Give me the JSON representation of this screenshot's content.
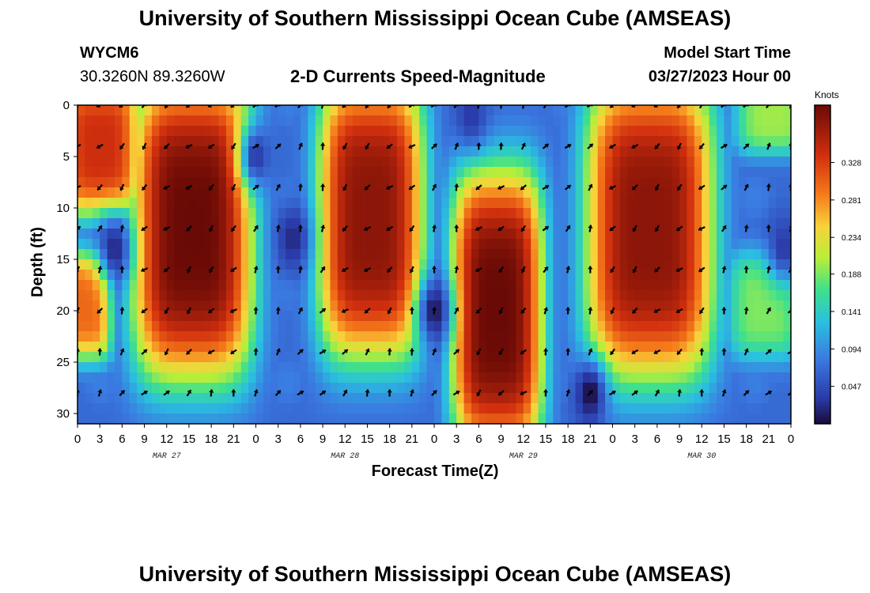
{
  "page": {
    "title": "University of Southern Mississippi Ocean Cube (AMSEAS)",
    "footer_title": "University of Southern Mississippi Ocean Cube (AMSEAS)",
    "station_id": "WYCM6",
    "station_coords": "30.3260N  89.3260W",
    "subtitle": "2-D Currents Speed-Magnitude",
    "model_start_label": "Model Start Time",
    "model_start_value": "03/27/2023 Hour 00"
  },
  "chart_data": {
    "type": "heatmap",
    "title": "2-D Currents Speed-Magnitude",
    "xlabel": "Forecast Time(Z)",
    "ylabel": "Depth (ft)",
    "x_range_hours": [
      0,
      96
    ],
    "y_range_ft": [
      0,
      31
    ],
    "y_inverted": true,
    "x_tick_labels": [
      "0",
      "3",
      "6",
      "9",
      "12",
      "15",
      "18",
      "21",
      "0",
      "3",
      "6",
      "9",
      "12",
      "15",
      "18",
      "21",
      "0",
      "3",
      "6",
      "9",
      "12",
      "15",
      "18",
      "21",
      "0",
      "3",
      "6",
      "9",
      "12",
      "15",
      "18",
      "21",
      "0"
    ],
    "x_tick_hours": [
      0,
      3,
      6,
      9,
      12,
      15,
      18,
      21,
      24,
      27,
      30,
      33,
      36,
      39,
      42,
      45,
      48,
      51,
      54,
      57,
      60,
      63,
      66,
      69,
      72,
      75,
      78,
      81,
      84,
      87,
      90,
      93,
      96
    ],
    "date_labels": [
      {
        "text": "MAR 27",
        "hour": 12
      },
      {
        "text": "MAR 28",
        "hour": 36
      },
      {
        "text": "MAR 29",
        "hour": 60
      },
      {
        "text": "MAR 30",
        "hour": 84
      }
    ],
    "y_ticks": [
      0,
      5,
      10,
      15,
      20,
      25,
      30
    ],
    "y_tick_labels": [
      "0",
      "5",
      "10",
      "15",
      "20",
      "25",
      "30"
    ],
    "colorbar": {
      "units": "Knots",
      "min": 0.0,
      "max": 0.4,
      "tick_labels": [
        "0.328",
        "0.281",
        "0.234",
        "0.188",
        "0.141",
        "0.094",
        "0.047"
      ],
      "tick_values": [
        0.328,
        0.281,
        0.234,
        0.188,
        0.141,
        0.094,
        0.047
      ]
    },
    "speed_bands_knots": [
      {
        "t_start": 0,
        "t_end": 6,
        "depth_start": 0,
        "depth_end": 8,
        "speed": 0.34
      },
      {
        "t_start": 0,
        "t_end": 2,
        "depth_start": 17,
        "depth_end": 22,
        "speed": 0.3
      },
      {
        "t_start": 10,
        "t_end": 21,
        "depth_start": 0,
        "depth_end": 24,
        "speed": 0.4
      },
      {
        "t_start": 35,
        "t_end": 44,
        "depth_start": 0,
        "depth_end": 22,
        "speed": 0.38
      },
      {
        "t_start": 53,
        "t_end": 60,
        "depth_start": 9,
        "depth_end": 31,
        "speed": 0.4
      },
      {
        "t_start": 71,
        "t_end": 83,
        "depth_start": 0,
        "depth_end": 24,
        "speed": 0.38
      },
      {
        "t_start": 90,
        "t_end": 95,
        "depth_start": 17,
        "depth_end": 22,
        "speed": 0.19
      },
      {
        "t_start": 91,
        "t_end": 96,
        "depth_start": 0,
        "depth_end": 2,
        "speed": 0.2
      }
    ],
    "low_spots_knots": [
      {
        "t": 5,
        "depth": 14,
        "speed": 0.02
      },
      {
        "t": 24,
        "depth": 5,
        "speed": 0.03
      },
      {
        "t": 29,
        "depth": 13,
        "speed": 0.02
      },
      {
        "t": 48,
        "depth": 20,
        "speed": 0.01
      },
      {
        "t": 69,
        "depth": 28,
        "speed": 0.0
      },
      {
        "t": 53,
        "depth": 1,
        "speed": 0.03
      },
      {
        "t": 95,
        "depth": 14,
        "speed": 0.03
      }
    ],
    "vector_grid": {
      "times_hours": [
        0,
        3,
        6,
        9,
        12,
        15,
        18,
        21,
        24,
        27,
        30,
        33,
        36,
        39,
        42,
        45,
        48,
        51,
        54,
        57,
        60,
        63,
        66,
        69,
        72,
        75,
        78,
        81,
        84,
        87,
        90,
        93,
        96
      ],
      "depths_ft": [
        0,
        4,
        8,
        12,
        16,
        20,
        24,
        28
      ],
      "direction_pattern": "south-west in high speed bands, north/north-east elsewhere"
    }
  }
}
